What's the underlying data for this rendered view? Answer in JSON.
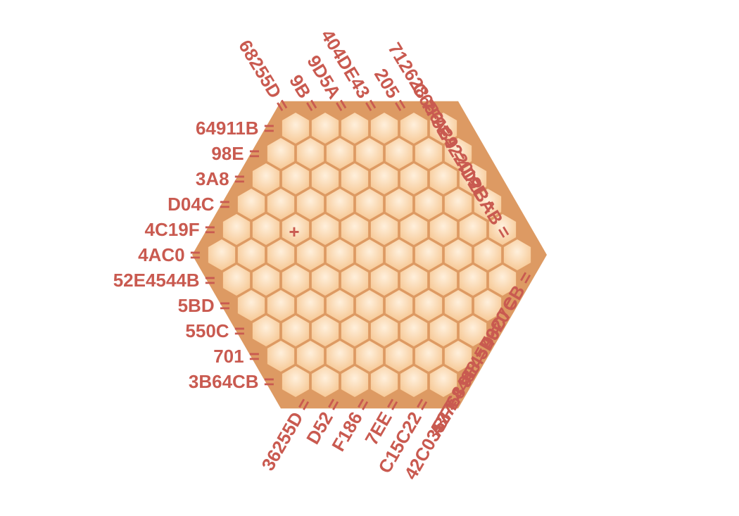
{
  "puzzle": {
    "cursor_mark": "+",
    "cursor_cell": {
      "row": 4,
      "col": 2
    },
    "colors": {
      "cell_fill_light": "#fff0dc",
      "cell_fill_dark": "#f6c793",
      "cell_stroke": "#dd9a63",
      "clue_text": "#c95a50",
      "cursor": "#c95a50"
    },
    "clues_left": [
      "64911B =",
      "98E =",
      "3A8 =",
      "D04C =",
      "4C19F =",
      "4AC0 =",
      "52E4544B =",
      "5BD =",
      "550C =",
      "701 =",
      "3B64CB ="
    ],
    "clues_top": [
      "68255D =",
      "9B =",
      "9D5A =",
      "404DE43 =",
      "205 =",
      "712628 =",
      "C656 =",
      "7FA39 =",
      "9E4220 =",
      "19E =",
      "4D2BAB ="
    ],
    "clues_bottom_right": [
      "49C7CB =",
      "F620 =",
      "9E45D =",
      "BFE4488 =",
      "A7768 =",
      "42C0353 =",
      "C15C22 =",
      "7EE =",
      "F186 =",
      "D52 =",
      "36255D ="
    ]
  }
}
